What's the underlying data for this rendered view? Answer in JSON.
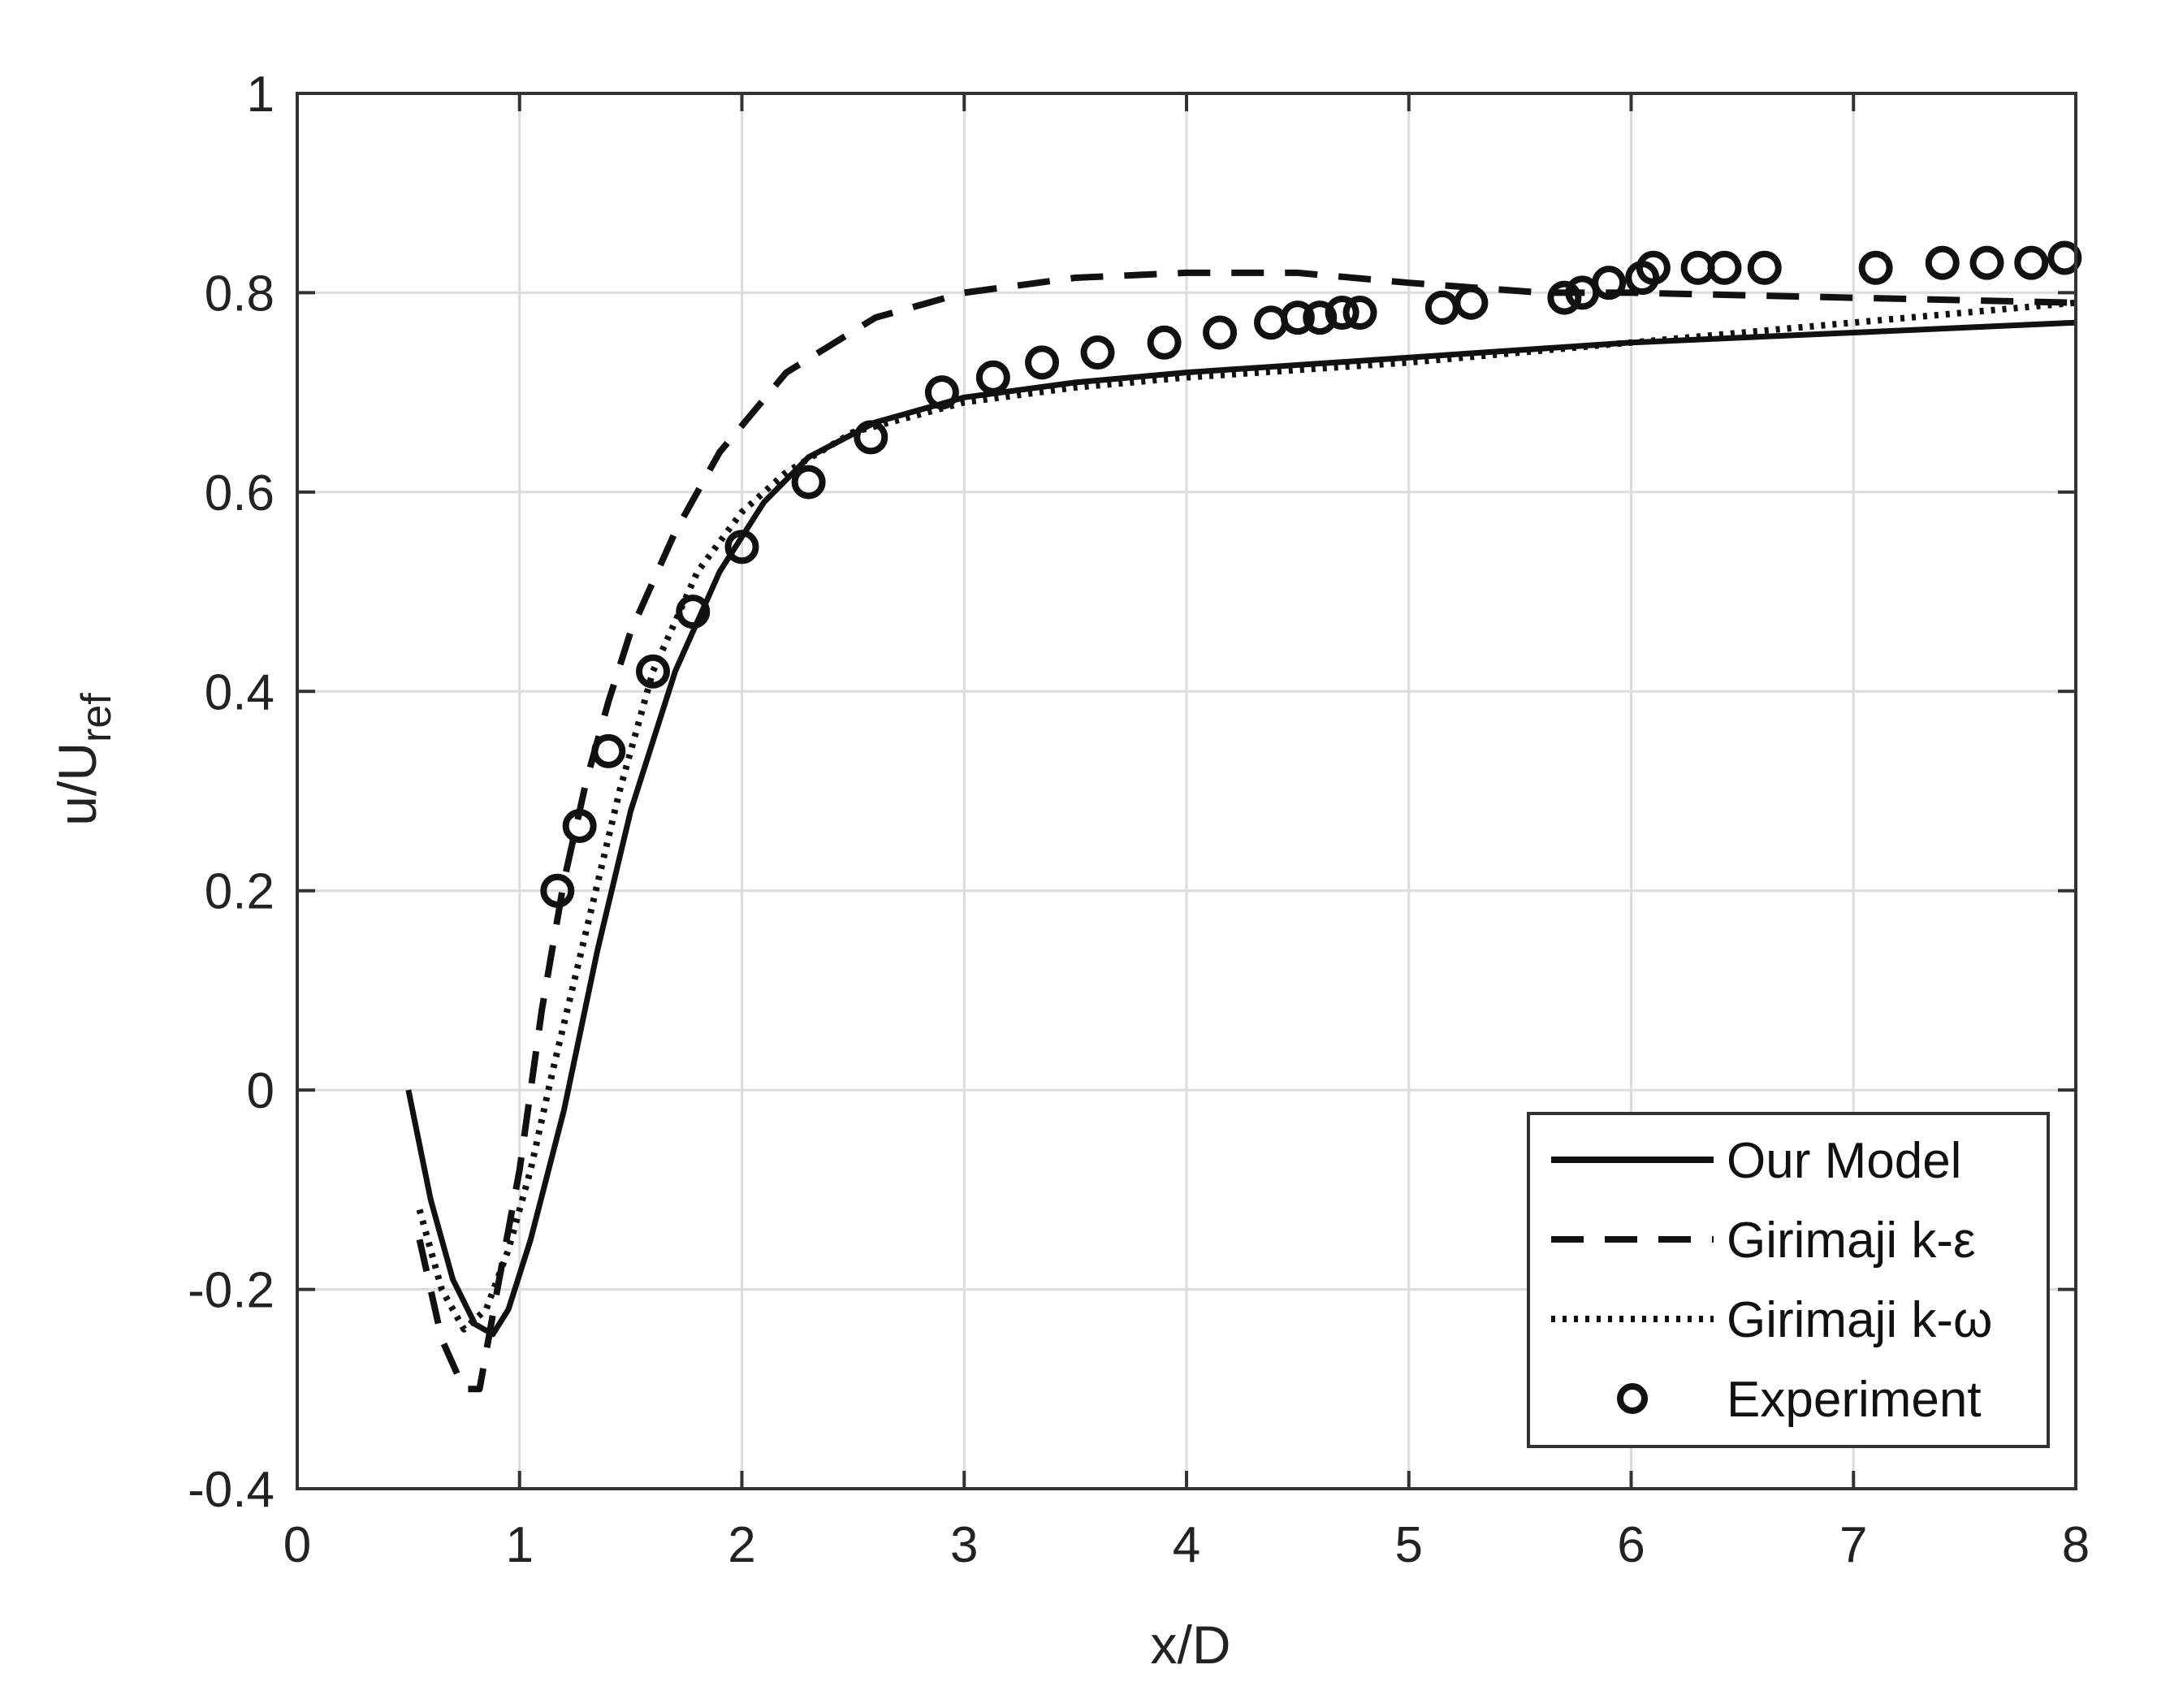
{
  "chart_data": {
    "type": "line",
    "xlabel": "x/D",
    "ylabel": {
      "base": "u/U",
      "subscript": "ref"
    },
    "xlim": [
      0,
      8
    ],
    "ylim": [
      -0.4,
      1
    ],
    "xticks": [
      "0",
      "1",
      "2",
      "3",
      "4",
      "5",
      "6",
      "7",
      "8"
    ],
    "yticks": [
      "-0.4",
      "-0.2",
      "0",
      "0.2",
      "0.4",
      "0.6",
      "0.8",
      "1"
    ],
    "grid": true,
    "legend_position": "bottom-right",
    "series": [
      {
        "name": "Our Model",
        "style": "solid",
        "x": [
          0.5,
          0.6,
          0.7,
          0.8,
          0.88,
          0.95,
          1.05,
          1.2,
          1.35,
          1.5,
          1.7,
          1.9,
          2.1,
          2.3,
          2.6,
          3.0,
          3.5,
          4.0,
          5.0,
          6.0,
          7.0,
          8.0
        ],
        "y": [
          0.0,
          -0.11,
          -0.19,
          -0.235,
          -0.245,
          -0.22,
          -0.15,
          -0.02,
          0.14,
          0.28,
          0.42,
          0.52,
          0.59,
          0.635,
          0.67,
          0.695,
          0.71,
          0.72,
          0.735,
          0.75,
          0.76,
          0.77
        ]
      },
      {
        "name": "Girimaji k-ε",
        "style": "dashed",
        "x": [
          0.55,
          0.65,
          0.75,
          0.82,
          0.9,
          1.0,
          1.1,
          1.2,
          1.3,
          1.4,
          1.5,
          1.7,
          1.9,
          2.2,
          2.6,
          3.0,
          3.5,
          4.0,
          4.5,
          5.0,
          5.6,
          6.0,
          7.0,
          8.0
        ],
        "y": [
          -0.15,
          -0.25,
          -0.3,
          -0.3,
          -0.2,
          -0.08,
          0.08,
          0.21,
          0.31,
          0.39,
          0.46,
          0.56,
          0.64,
          0.72,
          0.775,
          0.8,
          0.815,
          0.82,
          0.82,
          0.81,
          0.8,
          0.8,
          0.795,
          0.79
        ]
      },
      {
        "name": "Girimaji k-ω",
        "style": "dotted",
        "x": [
          0.55,
          0.65,
          0.75,
          0.85,
          0.95,
          1.05,
          1.15,
          1.3,
          1.45,
          1.6,
          1.8,
          2.0,
          2.2,
          2.5,
          3.0,
          3.5,
          4.0,
          5.0,
          6.0,
          7.0,
          8.0
        ],
        "y": [
          -0.12,
          -0.2,
          -0.24,
          -0.22,
          -0.16,
          -0.08,
          0.02,
          0.16,
          0.3,
          0.42,
          0.52,
          0.58,
          0.62,
          0.66,
          0.69,
          0.705,
          0.715,
          0.73,
          0.75,
          0.77,
          0.79
        ]
      },
      {
        "name": "Experiment",
        "style": "markers",
        "x": [
          1.17,
          1.27,
          1.4,
          1.6,
          1.78,
          2.0,
          2.3,
          2.58,
          2.9,
          3.13,
          3.35,
          3.6,
          3.9,
          4.15,
          4.38,
          4.5,
          4.6,
          4.7,
          4.78,
          5.15,
          5.28,
          5.7,
          5.78,
          5.9,
          6.05,
          6.1,
          6.3,
          6.42,
          6.6,
          7.1,
          7.4,
          7.6,
          7.8,
          7.95
        ],
        "y": [
          0.2,
          0.265,
          0.34,
          0.42,
          0.48,
          0.545,
          0.61,
          0.655,
          0.7,
          0.715,
          0.73,
          0.74,
          0.75,
          0.76,
          0.77,
          0.775,
          0.775,
          0.78,
          0.78,
          0.785,
          0.79,
          0.795,
          0.8,
          0.81,
          0.815,
          0.825,
          0.825,
          0.825,
          0.825,
          0.825,
          0.83,
          0.83,
          0.83,
          0.835
        ]
      }
    ]
  }
}
